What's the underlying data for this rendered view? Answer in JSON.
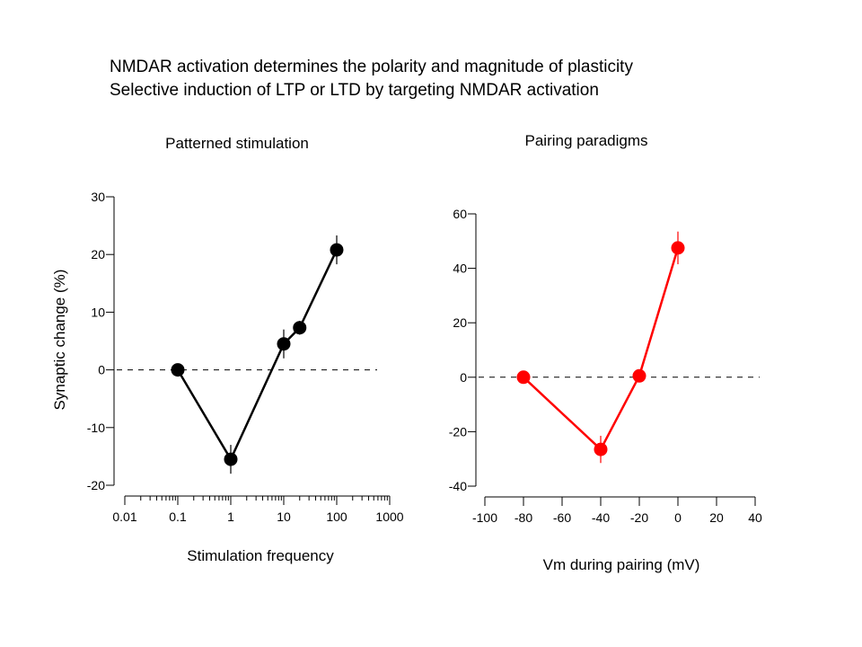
{
  "title_lines": [
    "NMDAR activation determines the polarity and magnitude of plasticity",
    "Selective induction of LTP or LTD by targeting NMDAR activation"
  ],
  "chart_data": [
    {
      "type": "line",
      "title": "Patterned stimulation",
      "xlabel": "Stimulation frequency",
      "ylabel": "Synaptic change (%)",
      "xscale": "log",
      "xlim": [
        0.01,
        1000
      ],
      "ylim": [
        -20,
        30
      ],
      "xticks": [
        0.01,
        0.1,
        1,
        10,
        100,
        1000
      ],
      "xtick_labels": [
        "0.01",
        "0.1",
        "1",
        "10",
        "100",
        "1000"
      ],
      "yticks": [
        -20,
        -10,
        0,
        10,
        20,
        30
      ],
      "ytick_labels": [
        "-20",
        "-10",
        "0",
        "10",
        "20",
        "30"
      ],
      "reference_line": 0,
      "series": [
        {
          "color": "#000000",
          "x": [
            0.1,
            1,
            10,
            20,
            100
          ],
          "y": [
            0,
            -15.5,
            4.5,
            7.3,
            20.8
          ],
          "error": [
            0,
            2.5,
            2.5,
            1.2,
            2.5
          ]
        }
      ]
    },
    {
      "type": "line",
      "title": "Pairing paradigms",
      "xlabel": "Vm during pairing (mV)",
      "ylabel": "",
      "xlim": [
        -100,
        40
      ],
      "ylim": [
        -40,
        60
      ],
      "xticks": [
        -100,
        -80,
        -60,
        -40,
        -20,
        0,
        20,
        40
      ],
      "xtick_labels": [
        "-100",
        "-80",
        "-60",
        "-40",
        "-20",
        "0",
        "20",
        "40"
      ],
      "yticks": [
        -40,
        -20,
        0,
        20,
        40,
        60
      ],
      "ytick_labels": [
        "-40",
        "-20",
        "0",
        "20",
        "40",
        "60"
      ],
      "reference_line": 0,
      "series": [
        {
          "color": "#ff0000",
          "x": [
            -80,
            -40,
            -20,
            0
          ],
          "y": [
            0,
            -26.5,
            0.5,
            47.5
          ],
          "error": [
            0,
            5,
            0,
            6
          ]
        }
      ]
    }
  ]
}
